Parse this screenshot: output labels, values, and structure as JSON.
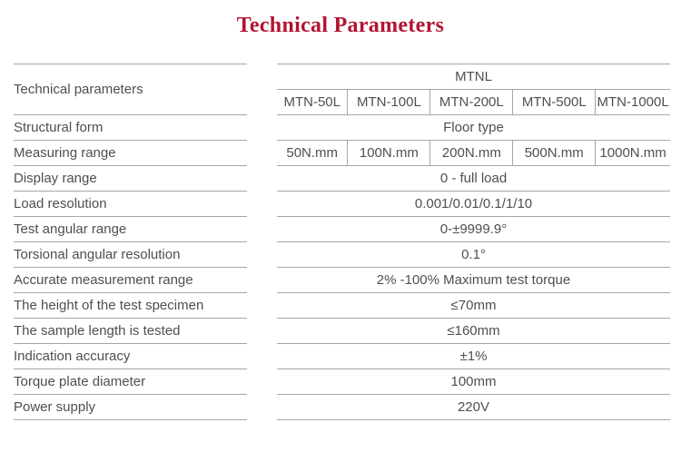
{
  "title": "Technical Parameters",
  "colors": {
    "title_red": "#b21432",
    "text_gray": "#4f4f4f",
    "line_gray": "#a6a6a6"
  },
  "table": {
    "corner_label": "Technical parameters",
    "series_label": "MTNL",
    "models": [
      "MTN-50L",
      "MTN-100L",
      "MTN-200L",
      "MTN-500L",
      "MTN-1000L"
    ],
    "rows": [
      {
        "label": "Structural form",
        "value": "Floor type"
      },
      {
        "label": "Measuring range",
        "values": [
          "50N.mm",
          "100N.mm",
          "200N.mm",
          "500N.mm",
          "1000N.mm"
        ]
      },
      {
        "label": "Display range",
        "value": "0 - full load"
      },
      {
        "label": "Load resolution",
        "value": "0.001/0.01/0.1/1/10"
      },
      {
        "label": "Test angular range",
        "value": "0-±9999.9°"
      },
      {
        "label": "Torsional angular resolution",
        "value": "0.1°"
      },
      {
        "label": "Accurate measurement range",
        "value": "2% -100% Maximum test torque"
      },
      {
        "label": "The height of the test specimen",
        "value": "≤70mm"
      },
      {
        "label": "The sample length is tested",
        "value": "≤160mm"
      },
      {
        "label": "Indication accuracy",
        "value": "±1%"
      },
      {
        "label": "Torque plate diameter",
        "value": "100mm"
      },
      {
        "label": "Power supply",
        "value": "220V"
      }
    ]
  }
}
